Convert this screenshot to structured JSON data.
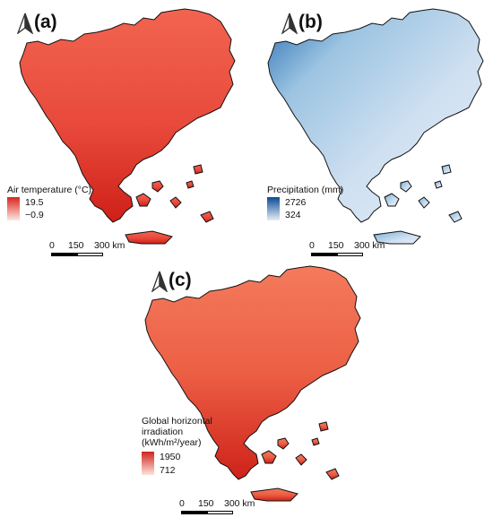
{
  "panels": [
    {
      "label": "(a)",
      "legend_title": "Air temperature (°C)",
      "legend_max": "19.5",
      "legend_min": "−0.9",
      "color_high": "#d7261e",
      "color_mid": "#f0604a",
      "color_low": "#fde7e2",
      "scale_ticks": [
        "0",
        "150",
        "300 km"
      ]
    },
    {
      "label": "(b)",
      "legend_title": "Precipitation (mm)",
      "legend_max": "2726",
      "legend_min": "324",
      "color_high": "#0b4a93",
      "color_mid": "#8fbedf",
      "color_low": "#e6eef8",
      "scale_ticks": [
        "0",
        "150",
        "300 km"
      ]
    },
    {
      "label": "(c)",
      "legend_title": [
        "Global horizontal",
        "irradiation",
        "(kWh/m²/year)"
      ],
      "legend_max": "1950",
      "legend_min": "712",
      "color_high": "#d0251c",
      "color_mid": "#ee6a4c",
      "color_low": "#fde3dc",
      "scale_ticks": [
        "0",
        "150",
        "300 km"
      ]
    }
  ],
  "north_arrow_icon": "north-arrow-icon"
}
